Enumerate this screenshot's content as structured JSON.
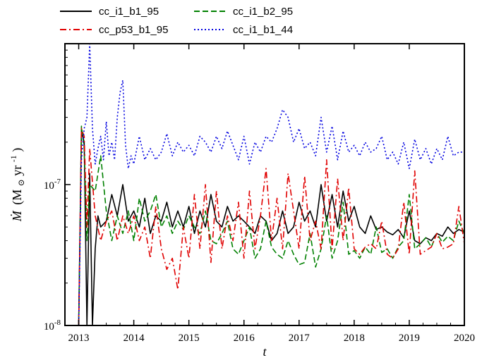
{
  "chart_data": {
    "type": "line",
    "title": "",
    "xlabel": "t",
    "ylabel_main": "Ṁ",
    "ylabel_unit": "(M",
    "ylabel_sub": "⊙",
    "ylabel_rest": "yr",
    "ylabel_exp": "-1",
    "ylabel_close": ")",
    "xlim": [
      2012.75,
      2020.0
    ],
    "ylim": [
      1e-08,
      1e-06
    ],
    "yscale": "log",
    "grid": false,
    "legend_position": "top",
    "xticks": [
      2013,
      2014,
      2015,
      2016,
      2017,
      2018,
      2019,
      2020
    ],
    "xtick_labels": [
      "2013",
      "2014",
      "2015",
      "2016",
      "2017",
      "2018",
      "2019",
      "2020"
    ],
    "ytick_labels": [
      {
        "value": 1e-08,
        "base": "10",
        "exp": "-8"
      },
      {
        "value": 1e-07,
        "base": "10",
        "exp": "-7"
      }
    ],
    "series": [
      {
        "name": "cc_i1_b1_95",
        "color": "#000000",
        "dash": "solid",
        "x": [
          2013.0,
          2013.05,
          2013.1,
          2013.15,
          2013.2,
          2013.25,
          2013.3,
          2013.35,
          2013.4,
          2013.5,
          2013.6,
          2013.7,
          2013.8,
          2013.9,
          2014.0,
          2014.1,
          2014.2,
          2014.3,
          2014.4,
          2014.5,
          2014.6,
          2014.7,
          2014.8,
          2014.9,
          2015.0,
          2015.1,
          2015.2,
          2015.3,
          2015.4,
          2015.5,
          2015.6,
          2015.7,
          2015.8,
          2015.9,
          2016.0,
          2016.1,
          2016.2,
          2016.3,
          2016.4,
          2016.5,
          2016.6,
          2016.7,
          2016.8,
          2016.9,
          2017.0,
          2017.1,
          2017.2,
          2017.3,
          2017.4,
          2017.5,
          2017.6,
          2017.7,
          2017.8,
          2017.9,
          2018.0,
          2018.1,
          2018.2,
          2018.3,
          2018.4,
          2018.5,
          2018.6,
          2018.7,
          2018.8,
          2018.9,
          2019.0,
          2019.1,
          2019.2,
          2019.3,
          2019.4,
          2019.5,
          2019.6,
          2019.7,
          2019.8,
          2019.9,
          2020.0
        ],
        "y": [
          1e-08,
          2.4e-07,
          2e-07,
          1e-08,
          1.2e-07,
          1e-08,
          3.5e-08,
          6e-08,
          5e-08,
          5.5e-08,
          8.5e-08,
          6e-08,
          1e-07,
          5.5e-08,
          6.5e-08,
          5e-08,
          8e-08,
          4.5e-08,
          6e-08,
          5.5e-08,
          7.5e-08,
          5e-08,
          6.5e-08,
          5e-08,
          7e-08,
          4.5e-08,
          6.5e-08,
          5e-08,
          8.5e-08,
          5.5e-08,
          5e-08,
          7e-08,
          5.5e-08,
          6e-08,
          5.5e-08,
          5e-08,
          4.5e-08,
          6e-08,
          5.5e-08,
          4e-08,
          4.5e-08,
          6.5e-08,
          4.5e-08,
          5e-08,
          7.5e-08,
          5.5e-08,
          6.5e-08,
          5e-08,
          1e-07,
          5.5e-08,
          8.5e-08,
          5e-08,
          9e-08,
          5.5e-08,
          7e-08,
          5e-08,
          4.5e-08,
          6e-08,
          4.8e-08,
          5e-08,
          4.6e-08,
          4.4e-08,
          4.8e-08,
          4.2e-08,
          6.5e-08,
          4e-08,
          3.8e-08,
          4.2e-08,
          4e-08,
          4.5e-08,
          4.3e-08,
          5e-08,
          4.5e-08,
          4.8e-08,
          4.6e-08
        ]
      },
      {
        "name": "cc_i1_b2_95",
        "color": "#008000",
        "dash": "dashed",
        "x": [
          2013.0,
          2013.05,
          2013.1,
          2013.15,
          2013.2,
          2013.3,
          2013.4,
          2013.5,
          2013.6,
          2013.7,
          2013.8,
          2013.9,
          2014.0,
          2014.1,
          2014.2,
          2014.3,
          2014.4,
          2014.5,
          2014.6,
          2014.7,
          2014.8,
          2014.9,
          2015.0,
          2015.1,
          2015.2,
          2015.3,
          2015.4,
          2015.5,
          2015.6,
          2015.7,
          2015.8,
          2015.9,
          2016.0,
          2016.1,
          2016.2,
          2016.3,
          2016.4,
          2016.5,
          2016.6,
          2016.7,
          2016.8,
          2016.9,
          2017.0,
          2017.1,
          2017.2,
          2017.3,
          2017.4,
          2017.5,
          2017.6,
          2017.7,
          2017.8,
          2017.9,
          2018.0,
          2018.1,
          2018.2,
          2018.3,
          2018.4,
          2018.5,
          2018.6,
          2018.7,
          2018.8,
          2018.9,
          2019.0,
          2019.1,
          2019.2,
          2019.3,
          2019.4,
          2019.5,
          2019.6,
          2019.7,
          2019.8,
          2019.9,
          2020.0
        ],
        "y": [
          1e-08,
          2.6e-07,
          1.8e-07,
          4e-08,
          1e-07,
          9e-08,
          1.6e-07,
          6.5e-08,
          4e-08,
          6e-08,
          4.5e-08,
          6.5e-08,
          4e-08,
          8e-08,
          5.5e-08,
          6.5e-08,
          8.5e-08,
          5e-08,
          6e-08,
          4.5e-08,
          5.5e-08,
          4.8e-08,
          6e-08,
          5e-08,
          4.5e-08,
          6.5e-08,
          4e-08,
          3.8e-08,
          4.5e-08,
          5.5e-08,
          3.5e-08,
          3.2e-08,
          4e-08,
          5e-08,
          3e-08,
          3.5e-08,
          5.5e-08,
          3.6e-08,
          3.2e-08,
          3e-08,
          4e-08,
          3.2e-08,
          2.7e-08,
          2.8e-08,
          4.5e-08,
          2.6e-08,
          3.5e-08,
          6e-08,
          3e-08,
          4e-08,
          7.5e-08,
          3.2e-08,
          3.4e-08,
          3e-08,
          3.6e-08,
          3.2e-08,
          5e-08,
          3.3e-08,
          3.5e-08,
          3e-08,
          3.6e-08,
          4e-08,
          8.5e-08,
          3.5e-08,
          3.8e-08,
          4.2e-08,
          3.6e-08,
          4.5e-08,
          3.9e-08,
          4.3e-08,
          4e-08,
          5.5e-08,
          4.5e-08
        ]
      },
      {
        "name": "cc_p53_b1_95",
        "color": "#e00000",
        "dash": "dashdot",
        "x": [
          2013.0,
          2013.05,
          2013.1,
          2013.15,
          2013.2,
          2013.3,
          2013.4,
          2013.5,
          2013.6,
          2013.7,
          2013.8,
          2013.9,
          2014.0,
          2014.1,
          2014.2,
          2014.3,
          2014.4,
          2014.5,
          2014.6,
          2014.7,
          2014.8,
          2014.9,
          2015.0,
          2015.1,
          2015.2,
          2015.3,
          2015.4,
          2015.5,
          2015.6,
          2015.7,
          2015.8,
          2015.9,
          2016.0,
          2016.1,
          2016.2,
          2016.3,
          2016.4,
          2016.5,
          2016.6,
          2016.7,
          2016.8,
          2016.9,
          2017.0,
          2017.1,
          2017.2,
          2017.3,
          2017.4,
          2017.5,
          2017.6,
          2017.7,
          2017.8,
          2017.9,
          2018.0,
          2018.1,
          2018.2,
          2018.3,
          2018.4,
          2018.5,
          2018.6,
          2018.7,
          2018.8,
          2018.9,
          2019.0,
          2019.1,
          2019.2,
          2019.3,
          2019.4,
          2019.5,
          2019.6,
          2019.7,
          2019.8,
          2019.9,
          2020.0
        ],
        "y": [
          1e-08,
          2.5e-07,
          2.2e-07,
          5e-08,
          1.8e-07,
          6e-08,
          4e-08,
          5.5e-08,
          6.5e-08,
          4e-08,
          6e-08,
          4.5e-08,
          6e-08,
          4e-08,
          5e-08,
          3e-08,
          7e-08,
          3.5e-08,
          2.5e-08,
          3e-08,
          1.8e-08,
          5e-08,
          3e-08,
          8.5e-08,
          3.5e-08,
          1e-07,
          2.8e-08,
          9e-08,
          3.5e-08,
          6e-08,
          4e-08,
          7.5e-08,
          3e-08,
          9e-08,
          3.5e-08,
          6e-08,
          1.3e-07,
          4e-08,
          8e-08,
          3.5e-08,
          1.2e-07,
          6.5e-08,
          3.5e-08,
          1.15e-07,
          4e-08,
          5.5e-08,
          3.5e-08,
          1.5e-07,
          3.5e-08,
          1.1e-07,
          4e-08,
          9.5e-08,
          3.5e-08,
          3.2e-08,
          3.6e-08,
          3.8e-08,
          3.5e-08,
          5.5e-08,
          3.2e-08,
          3e-08,
          3.5e-08,
          7.5e-08,
          3.2e-08,
          1.25e-07,
          3.2e-08,
          3.4e-08,
          3.6e-08,
          4.5e-08,
          3.5e-08,
          3.6e-08,
          3.8e-08,
          7e-08,
          3.8e-08
        ]
      },
      {
        "name": "cc_i1_b1_44",
        "color": "#0000e0",
        "dash": "dotted",
        "x": [
          2013.0,
          2013.05,
          2013.1,
          2013.15,
          2013.2,
          2013.25,
          2013.3,
          2013.35,
          2013.4,
          2013.45,
          2013.5,
          2013.55,
          2013.6,
          2013.65,
          2013.7,
          2013.75,
          2013.8,
          2013.85,
          2013.9,
          2013.95,
          2014.0,
          2014.1,
          2014.2,
          2014.3,
          2014.4,
          2014.5,
          2014.6,
          2014.7,
          2014.8,
          2014.9,
          2015.0,
          2015.1,
          2015.2,
          2015.3,
          2015.4,
          2015.5,
          2015.6,
          2015.7,
          2015.8,
          2015.9,
          2016.0,
          2016.1,
          2016.2,
          2016.3,
          2016.4,
          2016.5,
          2016.6,
          2016.7,
          2016.8,
          2016.9,
          2017.0,
          2017.1,
          2017.2,
          2017.3,
          2017.4,
          2017.5,
          2017.6,
          2017.7,
          2017.8,
          2017.9,
          2018.0,
          2018.1,
          2018.2,
          2018.3,
          2018.4,
          2018.5,
          2018.6,
          2018.7,
          2018.8,
          2018.9,
          2019.0,
          2019.1,
          2019.2,
          2019.3,
          2019.4,
          2019.5,
          2019.6,
          2019.7,
          2019.8,
          2019.9,
          2020.0
        ],
        "y": [
          1e-08,
          1.5e-07,
          2.5e-07,
          3e-07,
          1e-06,
          2.5e-07,
          1.4e-07,
          1.8e-07,
          2.2e-07,
          1.5e-07,
          2.8e-07,
          1.6e-07,
          2e-07,
          1.5e-07,
          3e-07,
          4.5e-07,
          5.5e-07,
          1.9e-07,
          1.3e-07,
          1.6e-07,
          1.4e-07,
          2.2e-07,
          1.5e-07,
          1.8e-07,
          1.5e-07,
          1.7e-07,
          2.3e-07,
          1.6e-07,
          2e-07,
          1.7e-07,
          1.9e-07,
          1.6e-07,
          2.2e-07,
          2e-07,
          1.7e-07,
          2.2e-07,
          1.8e-07,
          2.4e-07,
          1.9e-07,
          1.5e-07,
          2.2e-07,
          1.4e-07,
          2e-07,
          1.7e-07,
          2.2e-07,
          2e-07,
          2.5e-07,
          3.4e-07,
          3e-07,
          2e-07,
          2.5e-07,
          1.8e-07,
          2e-07,
          1.6e-07,
          3e-07,
          1.7e-07,
          2.6e-07,
          1.5e-07,
          2.4e-07,
          1.7e-07,
          1.9e-07,
          1.6e-07,
          2e-07,
          1.7e-07,
          1.8e-07,
          2.2e-07,
          1.5e-07,
          1.7e-07,
          1.4e-07,
          2e-07,
          1.3e-07,
          2.1e-07,
          1.5e-07,
          1.8e-07,
          1.4e-07,
          1.8e-07,
          1.5e-07,
          2.2e-07,
          1.6e-07,
          1.7e-07,
          1.7e-07
        ]
      }
    ]
  }
}
